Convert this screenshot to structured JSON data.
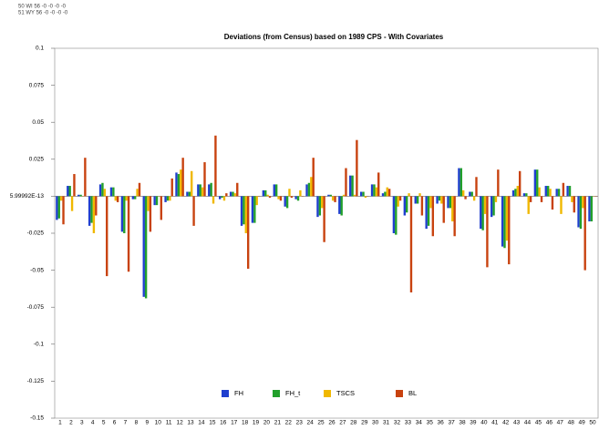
{
  "header_rows": [
    "50 WI 56 -0 -0 -0 -0",
    "51 WY 56 -0 -0 -0 -0"
  ],
  "chart_data": {
    "type": "bar",
    "title": "Deviations (from Census) based on 1989 CPS  - With Covariates",
    "categories": [
      "1",
      "2",
      "3",
      "4",
      "5",
      "6",
      "7",
      "8",
      "9",
      "10",
      "11",
      "12",
      "13",
      "14",
      "15",
      "16",
      "17",
      "18",
      "19",
      "20",
      "21",
      "22",
      "23",
      "24",
      "25",
      "26",
      "27",
      "28",
      "29",
      "30",
      "31",
      "32",
      "33",
      "34",
      "35",
      "36",
      "37",
      "38",
      "39",
      "40",
      "41",
      "42",
      "43",
      "44",
      "45",
      "46",
      "47",
      "48",
      "49",
      "50"
    ],
    "series": [
      {
        "name": "FH",
        "color": "#1f3fcf",
        "values": [
          -0.016,
          0.007,
          0.001,
          -0.02,
          0.008,
          0.006,
          -0.024,
          -0.002,
          -0.068,
          -0.006,
          -0.004,
          0.016,
          0.003,
          0.008,
          0.008,
          -0.002,
          0.003,
          -0.02,
          -0.018,
          0.004,
          0.008,
          -0.007,
          -0.002,
          0.008,
          -0.014,
          0.001,
          -0.012,
          0.014,
          0.003,
          0.008,
          0.002,
          -0.025,
          -0.013,
          -0.005,
          -0.022,
          -0.005,
          -0.008,
          0.019,
          0.003,
          -0.022,
          -0.014,
          -0.034,
          0.004,
          0.002,
          0.018,
          0.007,
          0.005,
          0.007,
          -0.021,
          -0.017
        ]
      },
      {
        "name": "FH_t",
        "color": "#22a02b",
        "values": [
          -0.015,
          0.007,
          0.001,
          -0.018,
          0.009,
          0.006,
          -0.025,
          -0.002,
          -0.069,
          -0.006,
          -0.003,
          0.015,
          0.003,
          0.008,
          0.009,
          -0.001,
          0.003,
          -0.019,
          -0.018,
          0.004,
          0.008,
          -0.008,
          -0.003,
          0.009,
          -0.013,
          0.001,
          -0.013,
          0.014,
          0.003,
          0.008,
          0.003,
          -0.026,
          -0.011,
          -0.005,
          -0.02,
          -0.003,
          -0.008,
          0.019,
          0.003,
          -0.023,
          -0.013,
          -0.035,
          0.005,
          0.002,
          0.018,
          0.007,
          0.005,
          0.007,
          -0.022,
          -0.017
        ]
      },
      {
        "name": "TSCS",
        "color": "#f0b800",
        "values": [
          -0.003,
          -0.01,
          0,
          -0.025,
          0.005,
          -0.003,
          -0.003,
          0.005,
          -0.01,
          0,
          -0.003,
          0.018,
          0.017,
          0.006,
          -0.005,
          -0.003,
          0.002,
          -0.025,
          -0.006,
          0.001,
          -0.002,
          0.005,
          0.004,
          0.013,
          -0.008,
          -0.003,
          0.001,
          0.001,
          -0.001,
          0.006,
          0.006,
          -0.007,
          0.002,
          0.002,
          -0.008,
          -0.005,
          -0.017,
          0.004,
          -0.003,
          -0.012,
          -0.004,
          -0.03,
          0.007,
          -0.012,
          0.006,
          0.005,
          -0.012,
          -0.004,
          -0.008,
          0
        ]
      },
      {
        "name": "BL",
        "color": "#c8420f",
        "values": [
          -0.019,
          0.015,
          0.026,
          -0.013,
          -0.054,
          -0.004,
          -0.051,
          0.009,
          -0.024,
          -0.016,
          0.012,
          0.026,
          -0.02,
          0.023,
          0.041,
          0.002,
          0.009,
          -0.049,
          0,
          -0.001,
          -0.003,
          -0.001,
          0,
          0.026,
          -0.031,
          -0.004,
          0.019,
          0.038,
          0,
          0.016,
          0.005,
          -0.003,
          -0.065,
          -0.013,
          -0.027,
          -0.018,
          -0.027,
          -0.002,
          0.013,
          -0.048,
          0.018,
          -0.046,
          0.017,
          -0.004,
          -0.004,
          -0.009,
          0.009,
          -0.011,
          -0.05,
          0
        ]
      }
    ],
    "ylim": [
      -0.15,
      0.1
    ],
    "yticks": [
      -0.15,
      -0.125,
      -0.1,
      -0.075,
      -0.05,
      -0.025,
      {
        "value": 5.99992e-13,
        "label": "5.99992E-13"
      },
      0.025,
      0.05,
      0.075,
      0.1
    ],
    "legend": "bottom"
  }
}
